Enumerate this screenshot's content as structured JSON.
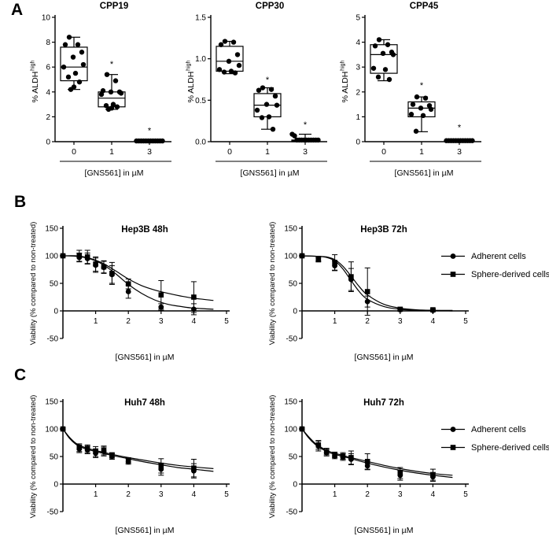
{
  "panels": {
    "A": {
      "label": "A"
    },
    "B": {
      "label": "B"
    },
    "C": {
      "label": "C"
    }
  },
  "legend": {
    "items": [
      {
        "label": "Adherent cells",
        "marker": "circle"
      },
      {
        "label": "Sphere-derived cells",
        "marker": "square"
      }
    ]
  },
  "colors": {
    "ink": "#000000",
    "background": "#ffffff"
  },
  "chart_data": [
    {
      "type": "box",
      "title": "CPP19",
      "ylabel_base": "% ALDH",
      "ylabel_sup": "high",
      "xlabel": "[GNS561] in µM",
      "categories": [
        "0",
        "1",
        "3"
      ],
      "ylim": [
        0,
        10
      ],
      "yticks": [
        "0",
        "2",
        "4",
        "6",
        "8",
        "10"
      ],
      "boxes": [
        {
          "whisker_low": 4.2,
          "q1": 4.9,
          "median": 6.0,
          "q3": 7.6,
          "whisker_high": 8.4,
          "points": [
            8.4,
            7.8,
            7.8,
            7.2,
            6.8,
            6.2,
            6.0,
            5.5,
            5.2,
            4.8,
            4.4,
            4.2
          ],
          "significance": "",
          "sig_y": 0
        },
        {
          "whisker_low": 2.6,
          "q1": 2.8,
          "median": 3.5,
          "q3": 4.0,
          "whisker_high": 5.4,
          "points": [
            5.4,
            4.9,
            4.1,
            4.0,
            4.0,
            3.9,
            3.8,
            3.0,
            2.9,
            2.8,
            2.7,
            2.6
          ],
          "significance": "*",
          "sig_y": 6.2
        },
        {
          "whisker_low": 0,
          "q1": 0,
          "median": 0.06,
          "q3": 0.12,
          "whisker_high": 0.15,
          "points": [
            0.06,
            0.06,
            0.06,
            0.06,
            0.06,
            0.06,
            0.06,
            0.06,
            0.06,
            0.06,
            0.06,
            0.06
          ],
          "significance": "*",
          "sig_y": 0.85
        }
      ]
    },
    {
      "type": "box",
      "title": "CPP30",
      "ylabel_base": "% ALDH",
      "ylabel_sup": "high",
      "xlabel": "[GNS561] in µM",
      "categories": [
        "0",
        "1",
        "3"
      ],
      "ylim": [
        0,
        1.5
      ],
      "yticks": [
        "0.0",
        "0.5",
        "1.0",
        "1.5"
      ],
      "boxes": [
        {
          "whisker_low": 0.82,
          "q1": 0.85,
          "median": 0.97,
          "q3": 1.15,
          "whisker_high": 1.21,
          "points": [
            1.21,
            1.2,
            1.17,
            1.05,
            0.97,
            0.92,
            0.87,
            0.85,
            0.84,
            0.83
          ],
          "significance": "",
          "sig_y": 0
        },
        {
          "whisker_low": 0.15,
          "q1": 0.3,
          "median": 0.44,
          "q3": 0.58,
          "whisker_high": 0.65,
          "points": [
            0.65,
            0.63,
            0.62,
            0.55,
            0.45,
            0.44,
            0.38,
            0.3,
            0.29,
            0.15
          ],
          "significance": "*",
          "sig_y": 0.74
        },
        {
          "whisker_low": 0,
          "q1": 0,
          "median": 0.01,
          "q3": 0.02,
          "whisker_high": 0.09,
          "points": [
            0.09,
            0.07,
            0.02,
            0.02,
            0.02,
            0.02,
            0.02,
            0.02,
            0.02,
            0.02,
            0.02,
            0.02
          ],
          "significance": "*",
          "sig_y": 0.2
        }
      ]
    },
    {
      "type": "box",
      "title": "CPP45",
      "ylabel_base": "% ALDH",
      "ylabel_sup": "high",
      "xlabel": "[GNS561] in µM",
      "categories": [
        "0",
        "1",
        "3"
      ],
      "ylim": [
        0,
        5
      ],
      "yticks": [
        "0",
        "1",
        "2",
        "3",
        "4",
        "5"
      ],
      "boxes": [
        {
          "whisker_low": 2.45,
          "q1": 2.75,
          "median": 3.5,
          "q3": 3.9,
          "whisker_high": 4.1,
          "points": [
            4.1,
            3.9,
            3.85,
            3.6,
            3.55,
            3.5,
            2.95,
            2.9,
            2.6,
            2.5
          ],
          "significance": "",
          "sig_y": 0
        },
        {
          "whisker_low": 0.4,
          "q1": 1.0,
          "median": 1.35,
          "q3": 1.6,
          "whisker_high": 1.8,
          "points": [
            1.8,
            1.75,
            1.5,
            1.45,
            1.35,
            1.3,
            1.1,
            1.05,
            0.42
          ],
          "significance": "*",
          "sig_y": 2.25
        },
        {
          "whisker_low": 0,
          "q1": 0,
          "median": 0.03,
          "q3": 0.06,
          "whisker_high": 0.08,
          "points": [
            0.04,
            0.04,
            0.04,
            0.04,
            0.04,
            0.04,
            0.04,
            0.04,
            0.04,
            0.04,
            0.04,
            0.04
          ],
          "significance": "*",
          "sig_y": 0.55
        }
      ]
    },
    {
      "type": "xy",
      "title": "Hep3B 48h",
      "ylabel": "Viability (% compared to non-treated)",
      "xlabel": "[GNS561] in µM",
      "xlim": [
        0,
        5
      ],
      "xticks": [
        "1",
        "2",
        "3",
        "4",
        "5"
      ],
      "ylim": [
        -50,
        150
      ],
      "yticks": [
        "-50",
        "0",
        "50",
        "100",
        "150"
      ],
      "series": [
        {
          "name": "Adherent cells",
          "marker": "circle",
          "x": [
            0,
            0.5,
            0.75,
            1,
            1.25,
            1.5,
            2,
            3,
            4
          ],
          "y": [
            100,
            97,
            95,
            83,
            79,
            66,
            35,
            7,
            3
          ],
          "err": [
            2,
            8,
            10,
            13,
            11,
            16,
            12,
            6,
            10
          ],
          "curve": [
            [
              0,
              100
            ],
            [
              0.4,
              99
            ],
            [
              0.8,
              95
            ],
            [
              1.2,
              85
            ],
            [
              1.6,
              68
            ],
            [
              2,
              48
            ],
            [
              2.4,
              32
            ],
            [
              2.8,
              20
            ],
            [
              3.2,
              12
            ],
            [
              3.6,
              8
            ],
            [
              4,
              5
            ],
            [
              4.6,
              3
            ]
          ]
        },
        {
          "name": "Sphere-derived cells",
          "marker": "square",
          "x": [
            0,
            0.5,
            0.75,
            1,
            1.25,
            1.5,
            2,
            3,
            4
          ],
          "y": [
            100,
            100,
            98,
            85,
            80,
            68,
            49,
            29,
            25
          ],
          "err": [
            2,
            10,
            12,
            13,
            11,
            20,
            9,
            26,
            28
          ],
          "curve": [
            [
              0,
              100
            ],
            [
              0.4,
              100
            ],
            [
              0.8,
              96
            ],
            [
              1.2,
              87
            ],
            [
              1.6,
              73
            ],
            [
              2,
              58
            ],
            [
              2.4,
              46
            ],
            [
              2.8,
              38
            ],
            [
              3.2,
              32
            ],
            [
              3.6,
              27
            ],
            [
              4,
              23
            ],
            [
              4.6,
              19
            ]
          ]
        }
      ]
    },
    {
      "type": "xy",
      "title": "Hep3B 72h",
      "ylabel": "Viability (% compared to non-treated)",
      "xlabel": "[GNS561] in µM",
      "xlim": [
        0,
        5
      ],
      "xticks": [
        "1",
        "2",
        "3",
        "4",
        "5"
      ],
      "ylim": [
        -50,
        150
      ],
      "yticks": [
        "-50",
        "0",
        "50",
        "100",
        "150"
      ],
      "series": [
        {
          "name": "Adherent cells",
          "marker": "circle",
          "x": [
            0,
            0.5,
            1,
            1.5,
            2,
            3,
            4
          ],
          "y": [
            100,
            95,
            82,
            57,
            17,
            2,
            1
          ],
          "err": [
            2,
            4,
            9,
            20,
            10,
            2,
            2
          ],
          "curve": [
            [
              0,
              100
            ],
            [
              0.5,
              99
            ],
            [
              0.75,
              97
            ],
            [
              1,
              91
            ],
            [
              1.25,
              76
            ],
            [
              1.5,
              55
            ],
            [
              1.75,
              35
            ],
            [
              2,
              21
            ],
            [
              2.5,
              8
            ],
            [
              3,
              3
            ],
            [
              3.5,
              1
            ],
            [
              4,
              1
            ],
            [
              4.6,
              0
            ]
          ]
        },
        {
          "name": "Sphere-derived cells",
          "marker": "square",
          "x": [
            0,
            0.5,
            1,
            1.5,
            2,
            3,
            4
          ],
          "y": [
            100,
            93,
            88,
            62,
            35,
            3,
            2
          ],
          "err": [
            2,
            4,
            14,
            27,
            43,
            2,
            2
          ],
          "curve": [
            [
              0,
              100
            ],
            [
              0.5,
              99
            ],
            [
              0.75,
              98
            ],
            [
              1,
              93
            ],
            [
              1.25,
              81
            ],
            [
              1.5,
              63
            ],
            [
              1.75,
              44
            ],
            [
              2,
              29
            ],
            [
              2.5,
              12
            ],
            [
              3,
              5
            ],
            [
              3.5,
              2
            ],
            [
              4,
              1
            ],
            [
              4.6,
              1
            ]
          ]
        }
      ]
    },
    {
      "type": "xy",
      "title": "Huh7 48h",
      "ylabel": "Viability (% compared to non-treated)",
      "xlabel": "[GNS561] in µM",
      "xlim": [
        0,
        5
      ],
      "xticks": [
        "1",
        "2",
        "3",
        "4",
        "5"
      ],
      "ylim": [
        -50,
        150
      ],
      "yticks": [
        "-50",
        "0",
        "50",
        "100",
        "150"
      ],
      "series": [
        {
          "name": "Adherent cells",
          "marker": "circle",
          "x": [
            0,
            0.5,
            0.75,
            1,
            1.25,
            1.5,
            2,
            3,
            4
          ],
          "y": [
            100,
            64,
            62,
            56,
            59,
            50,
            41,
            27,
            24
          ],
          "err": [
            2,
            7,
            7,
            8,
            8,
            5,
            5,
            11,
            13
          ],
          "curve": [
            [
              0,
              100
            ],
            [
              0.2,
              83
            ],
            [
              0.4,
              72
            ],
            [
              0.6,
              66
            ],
            [
              0.8,
              62
            ],
            [
              1,
              59
            ],
            [
              1.5,
              52
            ],
            [
              2,
              46
            ],
            [
              2.5,
              40
            ],
            [
              3,
              35
            ],
            [
              3.5,
              30
            ],
            [
              4,
              27
            ],
            [
              4.6,
              23
            ]
          ]
        },
        {
          "name": "Sphere-derived cells",
          "marker": "square",
          "x": [
            0,
            0.5,
            0.75,
            1,
            1.25,
            1.5,
            2,
            3,
            4
          ],
          "y": [
            100,
            66,
            64,
            59,
            61,
            52,
            43,
            33,
            29
          ],
          "err": [
            2,
            7,
            7,
            9,
            8,
            5,
            5,
            13,
            16
          ],
          "curve": [
            [
              0,
              100
            ],
            [
              0.2,
              85
            ],
            [
              0.4,
              74
            ],
            [
              0.6,
              68
            ],
            [
              0.8,
              64
            ],
            [
              1,
              61
            ],
            [
              1.5,
              54
            ],
            [
              2,
              48
            ],
            [
              2.5,
              43
            ],
            [
              3,
              38
            ],
            [
              3.5,
              34
            ],
            [
              4,
              31
            ],
            [
              4.6,
              28
            ]
          ]
        }
      ]
    },
    {
      "type": "xy",
      "title": "Huh7 72h",
      "ylabel": "Viability (% compared to non-treated)",
      "xlabel": "[GNS561] in µM",
      "xlim": [
        0,
        5
      ],
      "xticks": [
        "1",
        "2",
        "3",
        "4",
        "5"
      ],
      "ylim": [
        -50,
        150
      ],
      "yticks": [
        "-50",
        "0",
        "50",
        "100",
        "150"
      ],
      "series": [
        {
          "name": "Adherent cells",
          "marker": "circle",
          "x": [
            0,
            0.5,
            0.75,
            1,
            1.25,
            1.5,
            2,
            3,
            4
          ],
          "y": [
            100,
            69,
            57,
            51,
            49,
            45,
            33,
            16,
            13
          ],
          "err": [
            2,
            9,
            6,
            5,
            6,
            10,
            7,
            9,
            8
          ],
          "curve": [
            [
              0,
              100
            ],
            [
              0.2,
              84
            ],
            [
              0.4,
              72
            ],
            [
              0.6,
              64
            ],
            [
              0.8,
              58
            ],
            [
              1,
              54
            ],
            [
              1.5,
              46
            ],
            [
              2,
              38
            ],
            [
              2.5,
              31
            ],
            [
              3,
              25
            ],
            [
              3.5,
              20
            ],
            [
              4,
              16
            ],
            [
              4.6,
              12
            ]
          ]
        },
        {
          "name": "Sphere-derived cells",
          "marker": "square",
          "x": [
            0,
            0.5,
            0.75,
            1,
            1.25,
            1.5,
            2,
            3,
            4
          ],
          "y": [
            100,
            71,
            59,
            53,
            51,
            48,
            41,
            20,
            17
          ],
          "err": [
            2,
            8,
            6,
            5,
            6,
            12,
            14,
            10,
            10
          ],
          "curve": [
            [
              0,
              100
            ],
            [
              0.2,
              86
            ],
            [
              0.4,
              74
            ],
            [
              0.6,
              66
            ],
            [
              0.8,
              60
            ],
            [
              1,
              56
            ],
            [
              1.5,
              48
            ],
            [
              2,
              41
            ],
            [
              2.5,
              34
            ],
            [
              3,
              28
            ],
            [
              3.5,
              23
            ],
            [
              4,
              19
            ],
            [
              4.6,
              16
            ]
          ]
        }
      ]
    }
  ]
}
